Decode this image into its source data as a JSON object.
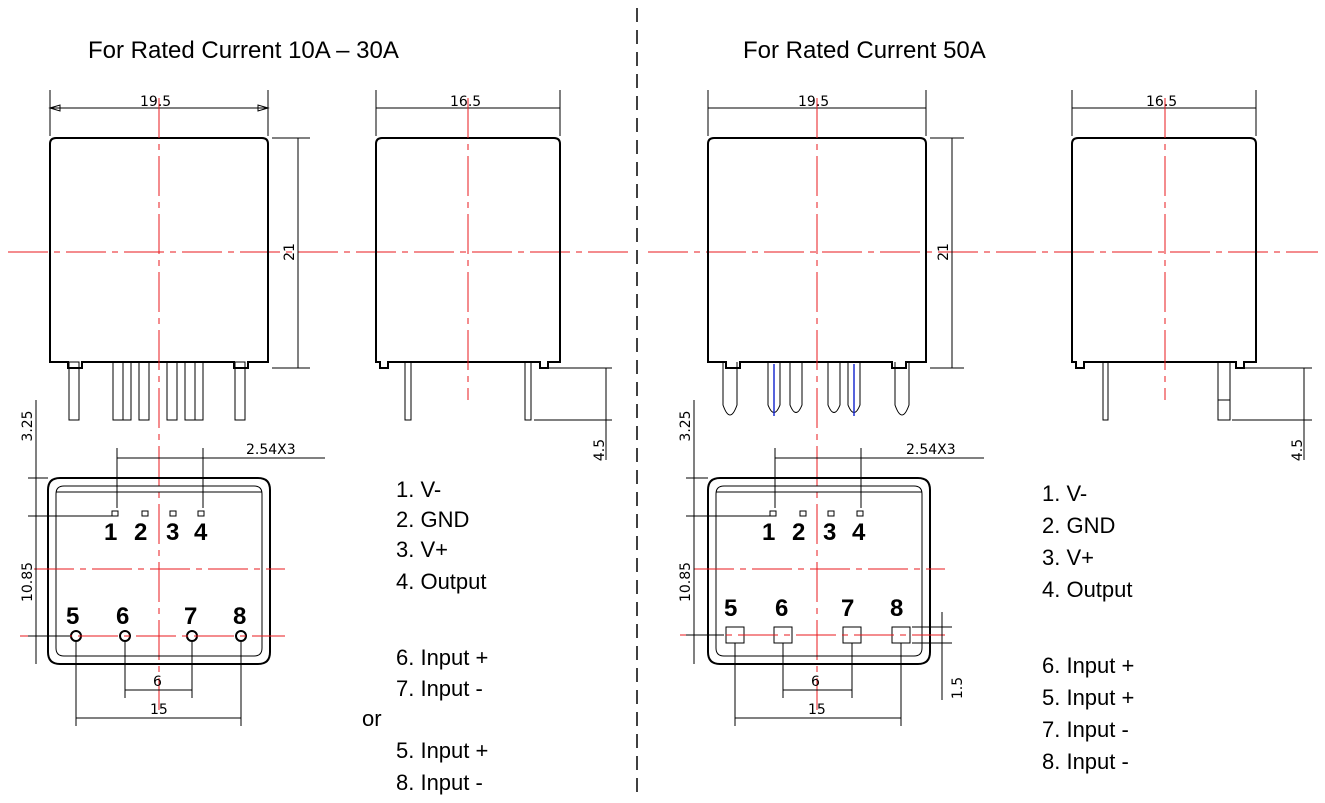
{
  "titles": {
    "left": "For Rated Current 10A – 30A",
    "right": "For Rated Current 50A"
  },
  "dimensions": {
    "width_front": "19.5",
    "width_side": "16.5",
    "height": "21",
    "pin_offset": "3.25",
    "pin_pitch": "2.54X3",
    "row_spacing": "10.85",
    "input_pitch": "6",
    "input_span": "15",
    "pin_length": "4.5",
    "square_pin": "1.5"
  },
  "pin_numbers": [
    "1",
    "2",
    "3",
    "4",
    "5",
    "6",
    "7",
    "8"
  ],
  "legend_left": {
    "outputs": [
      "1. V-",
      "2. GND",
      "3. V+",
      "4. Output"
    ],
    "inputs_a": [
      "6.  Input +",
      "7.  Input -"
    ],
    "or": "or",
    "inputs_b": [
      "5.  Input +",
      "8.  Input -"
    ]
  },
  "legend_right": {
    "outputs": [
      "1. V-",
      "2. GND",
      "3. V+",
      "4. Output"
    ],
    "inputs": [
      "6.  Input +",
      "5.  Input +",
      "7.  Input -",
      "8.  Input -"
    ]
  }
}
